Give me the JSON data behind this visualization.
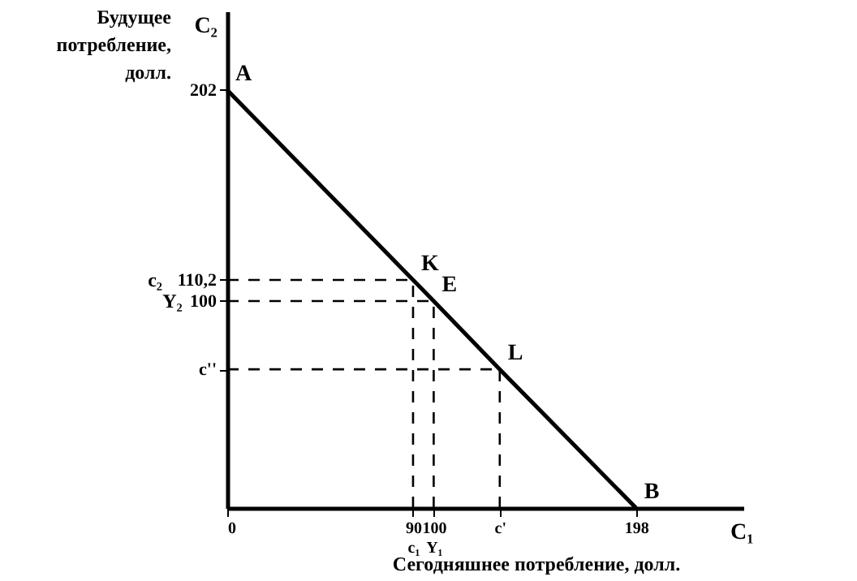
{
  "chart_data": {
    "type": "line",
    "xlabel": "Сегодняшнее потребление, долл.",
    "ylabel": "Будущее потребление, долл.",
    "x": [
      0,
      90,
      100,
      132,
      198
    ],
    "series": [
      {
        "color": "#000000",
        "values": [
          202,
          110.2,
          100,
          67,
          0
        ]
      }
    ],
    "xlim": [
      0,
      250
    ],
    "ylim": [
      0,
      240
    ],
    "xticks": [
      0,
      {
        "value": 90,
        "label": "90\nc₁"
      },
      {
        "value": 100,
        "label": "100\nY₁"
      },
      {
        "value": 132,
        "label": "c'"
      },
      198
    ],
    "yticks": [
      {
        "value": 67,
        "label": "c''"
      },
      100,
      {
        "value": 110.2,
        "label": "110,2"
      },
      202
    ],
    "annotations": [
      "C₂",
      "C₁",
      "c₂",
      "Y₂",
      {
        "text": "A",
        "x": 0,
        "y": 202
      },
      {
        "text": "K",
        "x": 90,
        "y": 110.2
      },
      {
        "text": "E",
        "x": 100,
        "y": 100
      },
      {
        "text": "L",
        "x": 132,
        "y": 67
      },
      {
        "text": "B",
        "x": 198,
        "y": 0
      }
    ],
    "grid": false,
    "marker": "none",
    "line_style": "solid"
  }
}
